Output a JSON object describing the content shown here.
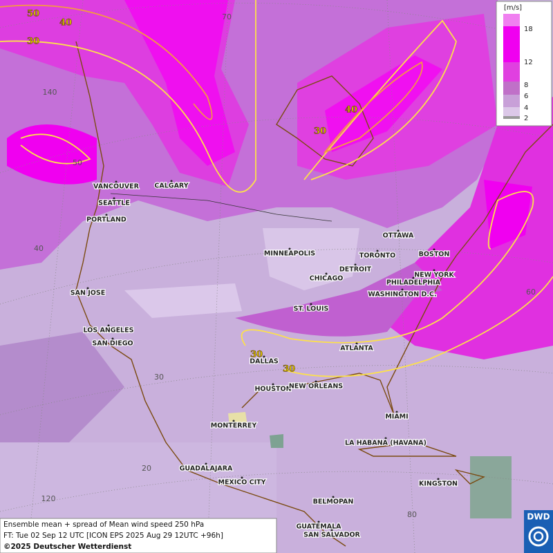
{
  "legend": {
    "unit": "[m/s]",
    "labels": [
      "18",
      "12",
      "8",
      "6",
      "4",
      "2"
    ]
  },
  "cities": [
    "VANCOUVER",
    "CALGARY",
    "SEATTLE",
    "PORTLAND",
    "MINNEAPOLIS",
    "TORONTO",
    "OTTAWA",
    "BOSTON",
    "DETROIT",
    "CHICAGO",
    "NEW YORK",
    "PHILADELPHIA",
    "WASHINGTON D.C.",
    "SAN JOSE",
    "ST. LOUIS",
    "LOS ANGELES",
    "SAN DIEGO",
    "ATLANTA",
    "DALLAS",
    "HOUSTON",
    "NEW ORLEANS",
    "MIAMI",
    "MONTERREY",
    "LA HABANA (HAVANA)",
    "GUADALAJARA",
    "MEXICO CITY",
    "KINGSTON",
    "BELMOPAN",
    "GUATEMALA",
    "SAN SALVADOR"
  ],
  "contour_labels": [
    "50",
    "40",
    "30",
    "40",
    "30",
    "30",
    "30"
  ],
  "graticule_labels": [
    "70",
    "140",
    "50",
    "40",
    "60",
    "30",
    "20",
    "120",
    "80"
  ],
  "footer": {
    "title": "Ensemble mean + spread of Mean wind speed 250 hPa",
    "forecast": "FT: Tue 02 Sep 12 UTC [ICON EPS 2025 Aug 29 12UTC +96h]",
    "copyright": "©2025 Deutscher Wetterdienst"
  },
  "logo": "DWD"
}
